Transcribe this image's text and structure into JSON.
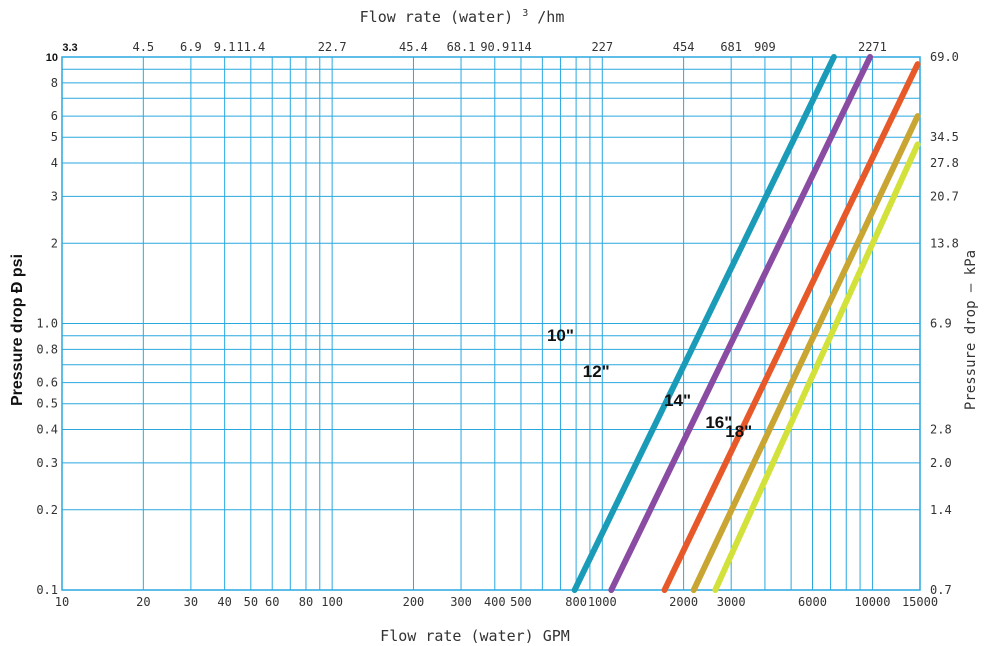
{
  "chart_data": {
    "type": "line",
    "title": "",
    "xlabel": "Flow rate  (water) GPM",
    "ylabel": "Pressure drop Ð psi",
    "top_xlabel_prefix": "Flow rate  (water)",
    "top_xlabel_sup": "3",
    "top_xlabel_suffix": "/hm",
    "right_ylabel": "Pressure drop – kPa",
    "x_scale": "log",
    "y_scale": "log",
    "xlim": [
      10,
      15000
    ],
    "ylim": [
      0.1,
      10
    ],
    "grid": true,
    "x_tick_labels": [
      {
        "value": 10,
        "label": "10"
      },
      {
        "value": 20,
        "label": "20"
      },
      {
        "value": 30,
        "label": "30"
      },
      {
        "value": 40,
        "label": "40"
      },
      {
        "value": 50,
        "label": "50"
      },
      {
        "value": 60,
        "label": "60"
      },
      {
        "value": 80,
        "label": "80"
      },
      {
        "value": 100,
        "label": "100"
      },
      {
        "value": 200,
        "label": "200"
      },
      {
        "value": 300,
        "label": "300"
      },
      {
        "value": 400,
        "label": "400"
      },
      {
        "value": 500,
        "label": "500"
      },
      {
        "value": 800,
        "label": "800"
      },
      {
        "value": 1000,
        "label": "1000"
      },
      {
        "value": 2000,
        "label": "2000"
      },
      {
        "value": 3000,
        "label": "3000"
      },
      {
        "value": 6000,
        "label": "6000"
      },
      {
        "value": 10000,
        "label": "10000"
      },
      {
        "value": 15000,
        "label": "15000"
      }
    ],
    "top_tick_labels": [
      {
        "value": 14.6,
        "label": "3.3",
        "bold": true
      },
      {
        "value": 20,
        "label": "4.5"
      },
      {
        "value": 30,
        "label": "6.9"
      },
      {
        "value": 40,
        "label": "9.1"
      },
      {
        "value": 50,
        "label": "11.4"
      },
      {
        "value": 100,
        "label": "22.7"
      },
      {
        "value": 200,
        "label": "45.4"
      },
      {
        "value": 300,
        "label": "68.1"
      },
      {
        "value": 400,
        "label": "90.9"
      },
      {
        "value": 500,
        "label": "114"
      },
      {
        "value": 1000,
        "label": "227"
      },
      {
        "value": 2000,
        "label": "454"
      },
      {
        "value": 3000,
        "label": "681"
      },
      {
        "value": 4000,
        "label": "909"
      },
      {
        "value": 10000,
        "label": "2271"
      }
    ],
    "y_tick_labels": [
      {
        "value": 0.1,
        "label": "0.1"
      },
      {
        "value": 0.2,
        "label": "0.2"
      },
      {
        "value": 0.3,
        "label": "0.3"
      },
      {
        "value": 0.4,
        "label": "0.4"
      },
      {
        "value": 0.5,
        "label": "0.5"
      },
      {
        "value": 0.6,
        "label": "0.6"
      },
      {
        "value": 0.8,
        "label": "0.8"
      },
      {
        "value": 1.0,
        "label": "1.0"
      },
      {
        "value": 2,
        "label": "2"
      },
      {
        "value": 3,
        "label": "3"
      },
      {
        "value": 4,
        "label": "4"
      },
      {
        "value": 5,
        "label": "5"
      },
      {
        "value": 6,
        "label": "6"
      },
      {
        "value": 8,
        "label": "8"
      },
      {
        "value": 10,
        "label": "10",
        "bold": true
      }
    ],
    "right_tick_labels": [
      {
        "value": 0.1,
        "label": "0.7"
      },
      {
        "value": 0.2,
        "label": "1.4"
      },
      {
        "value": 0.3,
        "label": "2.0"
      },
      {
        "value": 0.4,
        "label": "2.8"
      },
      {
        "value": 1.0,
        "label": "6.9"
      },
      {
        "value": 2,
        "label": "13.8"
      },
      {
        "value": 3,
        "label": "20.7"
      },
      {
        "value": 4,
        "label": "27.8"
      },
      {
        "value": 5,
        "label": "34.5"
      },
      {
        "value": 10,
        "label": "69.0"
      }
    ],
    "series": [
      {
        "name": "10\"",
        "color": "#1a9bb8",
        "x": [
          790,
          7200
        ],
        "y": [
          0.1,
          10
        ],
        "label_at": [
          700,
          0.86
        ]
      },
      {
        "name": "12\"",
        "color": "#8a4ca3",
        "x": [
          1080,
          9800
        ],
        "y": [
          0.1,
          10
        ],
        "label_at": [
          950,
          0.63
        ]
      },
      {
        "name": "14\"",
        "color": "#e8592a",
        "x": [
          1700,
          14700
        ],
        "y": [
          0.1,
          9.4
        ],
        "label_at": [
          1900,
          0.49
        ]
      },
      {
        "name": "16\"",
        "color": "#c9a532",
        "x": [
          2180,
          14700
        ],
        "y": [
          0.1,
          6.0
        ],
        "label_at": [
          2700,
          0.405
        ]
      },
      {
        "name": "18\"",
        "color": "#d3e23a",
        "x": [
          2620,
          14700
        ],
        "y": [
          0.1,
          4.7
        ],
        "label_at": [
          3200,
          0.375
        ]
      }
    ]
  },
  "colors": {
    "grid": "#29a8e0",
    "axis_text": "#333333",
    "label_text": "#111111"
  }
}
